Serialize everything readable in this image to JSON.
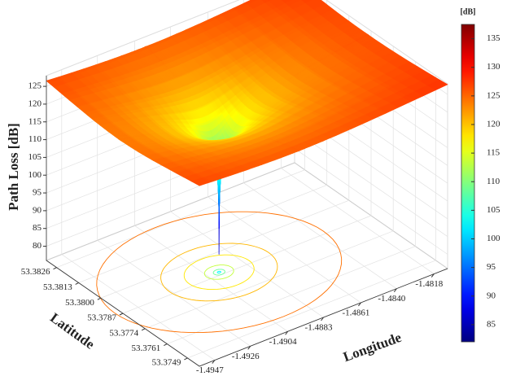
{
  "chart_data": {
    "type": "surface3d",
    "zlabel": "Path Loss [dB]",
    "xlabel": "Longitude",
    "ylabel": "Latitude",
    "xlim": [
      -1.4956,
      -1.481
    ],
    "xticks": [
      -1.4947,
      -1.4926,
      -1.4904,
      -1.4883,
      -1.4861,
      {
        "value": -1.484,
        "label": "-1.4840"
      },
      -1.4818
    ],
    "ylim": [
      53.3742,
      53.3832
    ],
    "yticks": [
      53.3749,
      53.3761,
      53.3774,
      53.3787,
      {
        "value": 53.38,
        "label": "53.3800"
      },
      53.3813,
      53.3826
    ],
    "zlim": [
      76,
      128
    ],
    "zticks": [
      80,
      85,
      90,
      95,
      100,
      105,
      110,
      115,
      120,
      125
    ],
    "colorbar": {
      "label": "[dB]",
      "clim": [
        82,
        137.5
      ],
      "ticks": [
        85,
        90,
        95,
        100,
        105,
        110,
        115,
        120,
        125,
        130,
        135
      ]
    },
    "colormap": "jet",
    "grid": true
  }
}
